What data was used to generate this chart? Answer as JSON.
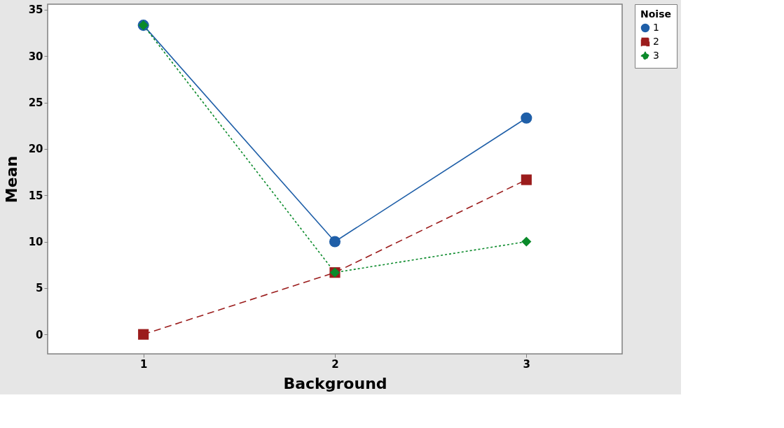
{
  "chart_data": {
    "type": "line",
    "xlabel": "Background",
    "ylabel": "Mean",
    "legend_title": "Noise",
    "categories": [
      "1",
      "2",
      "3"
    ],
    "series": [
      {
        "name": "1",
        "color": "#1f5fa8",
        "marker": "circle",
        "line_style": "solid",
        "values": [
          33.33,
          10.0,
          23.33
        ]
      },
      {
        "name": "2",
        "color": "#9b1c1c",
        "marker": "square",
        "line_style": "dashed",
        "values": [
          0.0,
          6.67,
          16.67
        ]
      },
      {
        "name": "3",
        "color": "#0a8a2a",
        "marker": "diamond",
        "line_style": "dotted",
        "values": [
          33.33,
          6.67,
          10.0
        ]
      }
    ],
    "ylim": [
      -2.1,
      35.6
    ],
    "yticks": [
      0,
      5,
      10,
      15,
      20,
      25,
      30,
      35
    ],
    "grid": false,
    "legend": "top right"
  }
}
